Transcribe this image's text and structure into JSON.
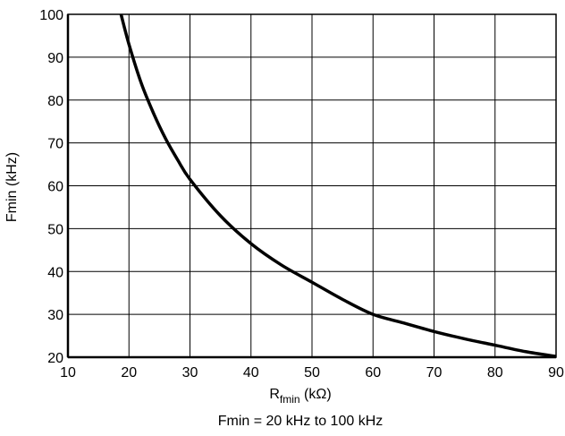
{
  "chart_data": {
    "type": "line",
    "title": "",
    "caption": "Fmin = 20 kHz to 100 kHz",
    "xlabel_main": "R",
    "xlabel_sub": "fmin",
    "xlabel_unit": " (kΩ)",
    "ylabel": "Fmin (kHz)",
    "xlim": [
      10,
      90
    ],
    "ylim": [
      20,
      100
    ],
    "xticks": [
      10,
      20,
      30,
      40,
      50,
      60,
      70,
      80,
      90
    ],
    "yticks": [
      20,
      30,
      40,
      50,
      60,
      70,
      80,
      90,
      100
    ],
    "grid": true,
    "series": [
      {
        "x": [
          18.7,
          20,
          22,
          24,
          26,
          28,
          30,
          35,
          40,
          45,
          50,
          55,
          60,
          65,
          70,
          75,
          80,
          85,
          90
        ],
        "y": [
          100,
          93,
          84,
          77,
          71,
          66,
          61.5,
          53,
          46.5,
          41.5,
          37.5,
          33.5,
          30,
          28,
          26,
          24.3,
          22.8,
          21.3,
          20.2
        ]
      }
    ]
  }
}
